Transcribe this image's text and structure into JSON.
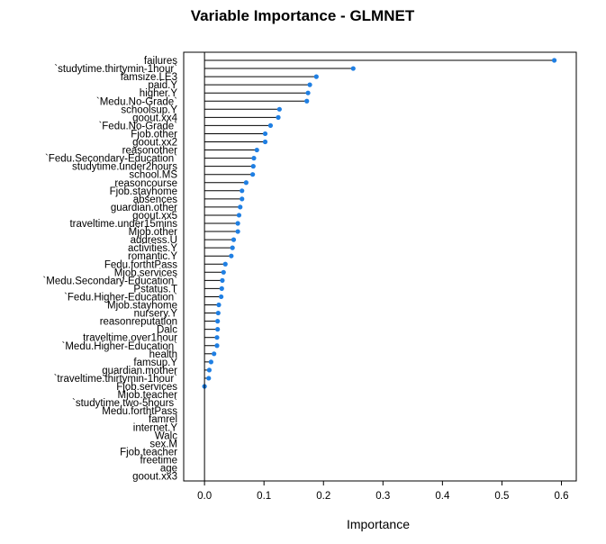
{
  "chart_data": {
    "type": "scatter",
    "title": "Variable Importance - GLMNET",
    "xlabel": "Importance",
    "ylabel": "",
    "xlim": [
      -0.035,
      0.625
    ],
    "xticks": [
      0.0,
      0.1,
      0.2,
      0.3,
      0.4,
      0.5,
      0.6
    ],
    "xtick_labels": [
      "0.0",
      "0.1",
      "0.2",
      "0.3",
      "0.4",
      "0.5",
      "0.6"
    ],
    "grid": false,
    "marker_color": "#1f7fe3",
    "categories": [
      "failures",
      "`studytime.thirtymin-1hour`",
      "famsize.LE3",
      "paid.Y",
      "higher.Y",
      "`Medu.No-Grade`",
      "schoolsup.Y",
      "goout.xx4",
      "`Fedu.No-Grade`",
      "Fjob.other",
      "goout.xx2",
      "reasonother",
      "`Fedu.Secondary-Education`",
      "studytime.under2hours",
      "school.MS",
      "reasoncourse",
      "Fjob.stayhome",
      "absences",
      "guardian.other",
      "goout.xx5",
      "traveltime.under15mins",
      "Mjob.other",
      "address.U",
      "activities.Y",
      "romantic.Y",
      "Fedu.forthtPass",
      "Mjob.services",
      "`Medu.Secondary-Education`",
      "Pstatus.T",
      "`Fedu.Higher-Education`",
      "Mjob.stayhome",
      "nursery.Y",
      "reasonreputation",
      "Dalc",
      "traveltime.over1hour",
      "`Medu.Higher-Education`",
      "health",
      "famsup.Y",
      "guardian.mother",
      "`traveltime.thirtymin-1hour`",
      "Fjob.services",
      "Mjob.teacher",
      "`studytime.two-5hours`",
      "Medu.forthtPass",
      "famrel",
      "internet.Y",
      "Walc",
      "sex.M",
      "Fjob.teacher",
      "freetime",
      "age",
      "goout.xx3"
    ],
    "values": [
      0.588,
      0.25,
      0.188,
      0.177,
      0.174,
      0.172,
      0.126,
      0.124,
      0.111,
      0.102,
      0.102,
      0.088,
      0.083,
      0.082,
      0.081,
      0.07,
      0.063,
      0.063,
      0.06,
      0.058,
      0.056,
      0.056,
      0.049,
      0.047,
      0.045,
      0.035,
      0.032,
      0.03,
      0.029,
      0.028,
      0.024,
      0.023,
      0.022,
      0.022,
      0.021,
      0.021,
      0.016,
      0.011,
      0.008,
      0.007,
      0.0,
      null,
      null,
      null,
      null,
      null,
      null,
      null,
      null,
      null,
      null,
      null
    ]
  }
}
